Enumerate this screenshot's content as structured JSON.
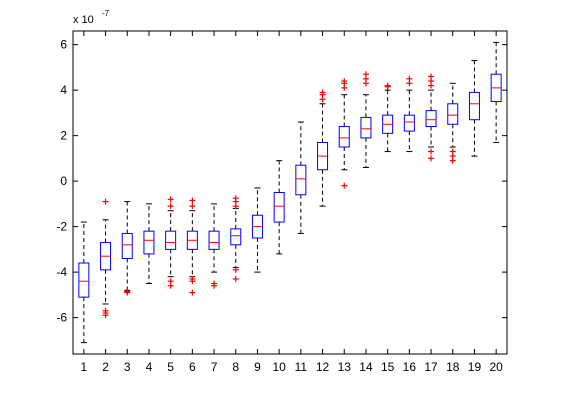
{
  "chart_data": {
    "type": "boxplot",
    "title": "",
    "xlabel": "",
    "ylabel": "",
    "y_exponent_base": "x 10",
    "y_exponent_power": "-7",
    "ylim": [
      -7.6,
      6.6
    ],
    "yticks": [
      -6,
      -4,
      -2,
      0,
      2,
      4,
      6
    ],
    "grid": false,
    "colors": {
      "box": "#0000ff",
      "median": "#ff0000",
      "whisker": "#000000",
      "outlier": "#ff0000",
      "axis": "#000000"
    },
    "categories": [
      "1",
      "2",
      "3",
      "4",
      "5",
      "6",
      "7",
      "8",
      "9",
      "10",
      "11",
      "12",
      "13",
      "14",
      "15",
      "16",
      "17",
      "18",
      "19",
      "20"
    ],
    "boxes": [
      {
        "label": "1",
        "whisker_low": -7.1,
        "q1": -5.1,
        "median": -4.4,
        "q3": -3.6,
        "whisker_high": -1.8,
        "outliers": []
      },
      {
        "label": "2",
        "whisker_low": -5.4,
        "q1": -3.9,
        "median": -3.3,
        "q3": -2.7,
        "whisker_high": -1.7,
        "outliers": [
          -0.9,
          -5.7,
          -5.8,
          -5.9
        ]
      },
      {
        "label": "3",
        "whisker_low": -4.8,
        "q1": -3.4,
        "median": -2.8,
        "q3": -2.3,
        "whisker_high": -0.9,
        "outliers": [
          -4.85,
          -4.9
        ]
      },
      {
        "label": "4",
        "whisker_low": -4.5,
        "q1": -3.2,
        "median": -2.6,
        "q3": -2.2,
        "whisker_high": -1.0,
        "outliers": []
      },
      {
        "label": "5",
        "whisker_low": -4.2,
        "q1": -3.0,
        "median": -2.7,
        "q3": -2.2,
        "whisker_high": -1.3,
        "outliers": [
          -0.8,
          -1.1,
          -4.4,
          -4.6
        ]
      },
      {
        "label": "6",
        "whisker_low": -4.2,
        "q1": -3.0,
        "median": -2.6,
        "q3": -2.2,
        "whisker_high": -1.3,
        "outliers": [
          -0.85,
          -1.1,
          -4.3,
          -4.4,
          -4.9
        ]
      },
      {
        "label": "7",
        "whisker_low": -4.0,
        "q1": -3.0,
        "median": -2.7,
        "q3": -2.2,
        "whisker_high": -1.0,
        "outliers": [
          -4.5,
          -4.6
        ]
      },
      {
        "label": "8",
        "whisker_low": -3.8,
        "q1": -2.8,
        "median": -2.4,
        "q3": -2.1,
        "whisker_high": -1.2,
        "outliers": [
          -0.75,
          -0.9,
          -1.1,
          -3.9,
          -4.3
        ]
      },
      {
        "label": "9",
        "whisker_low": -4.0,
        "q1": -2.5,
        "median": -2.0,
        "q3": -1.5,
        "whisker_high": -0.3,
        "outliers": []
      },
      {
        "label": "10",
        "whisker_low": -3.2,
        "q1": -1.8,
        "median": -1.1,
        "q3": -0.5,
        "whisker_high": 0.9,
        "outliers": []
      },
      {
        "label": "11",
        "whisker_low": -2.3,
        "q1": -0.6,
        "median": 0.1,
        "q3": 0.7,
        "whisker_high": 2.6,
        "outliers": []
      },
      {
        "label": "12",
        "whisker_low": -1.1,
        "q1": 0.5,
        "median": 1.1,
        "q3": 1.7,
        "whisker_high": 3.4,
        "outliers": [
          3.6,
          3.8,
          3.9
        ]
      },
      {
        "label": "13",
        "whisker_low": 0.5,
        "q1": 1.5,
        "median": 1.9,
        "q3": 2.4,
        "whisker_high": 3.8,
        "outliers": [
          -0.2,
          4.1,
          4.3,
          4.4
        ]
      },
      {
        "label": "14",
        "whisker_low": 0.6,
        "q1": 1.9,
        "median": 2.3,
        "q3": 2.8,
        "whisker_high": 3.8,
        "outliers": [
          4.3,
          4.5,
          4.7
        ]
      },
      {
        "label": "15",
        "whisker_low": 1.3,
        "q1": 2.1,
        "median": 2.5,
        "q3": 2.9,
        "whisker_high": 4.0,
        "outliers": [
          4.15,
          4.2
        ]
      },
      {
        "label": "16",
        "whisker_low": 1.3,
        "q1": 2.2,
        "median": 2.6,
        "q3": 2.9,
        "whisker_high": 4.0,
        "outliers": [
          4.3,
          4.5
        ]
      },
      {
        "label": "17",
        "whisker_low": 1.5,
        "q1": 2.4,
        "median": 2.7,
        "q3": 3.1,
        "whisker_high": 4.0,
        "outliers": [
          1.0,
          1.3,
          4.2,
          4.4,
          4.6
        ]
      },
      {
        "label": "18",
        "whisker_low": 1.5,
        "q1": 2.5,
        "median": 2.9,
        "q3": 3.4,
        "whisker_high": 4.3,
        "outliers": [
          0.9,
          1.1,
          1.3
        ]
      },
      {
        "label": "19",
        "whisker_low": 1.1,
        "q1": 2.7,
        "median": 3.4,
        "q3": 3.9,
        "whisker_high": 5.3,
        "outliers": []
      },
      {
        "label": "20",
        "whisker_low": 1.7,
        "q1": 3.5,
        "median": 4.1,
        "q3": 4.7,
        "whisker_high": 6.1,
        "outliers": []
      }
    ]
  }
}
